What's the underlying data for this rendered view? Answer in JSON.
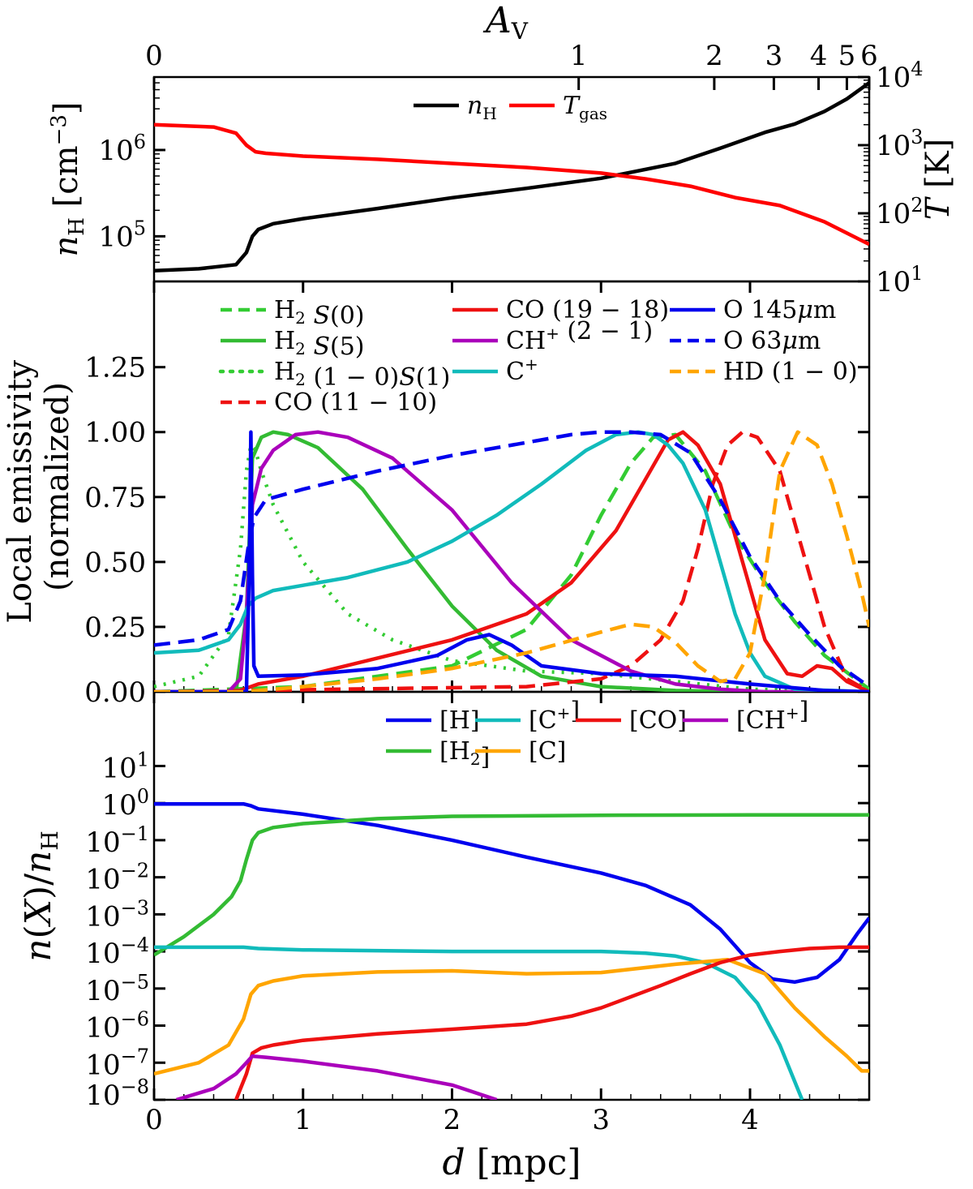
{
  "chart_data": [
    {
      "id": "top",
      "type": "line",
      "title": "",
      "top_axis": {
        "label": "A_V",
        "ticks": [
          {
            "v": 0,
            "label": "0",
            "d": 0.0
          },
          {
            "v": 1,
            "label": "1",
            "d": 2.85
          },
          {
            "v": 2,
            "label": "2",
            "d": 3.76
          },
          {
            "v": 3,
            "label": "3",
            "d": 4.16
          },
          {
            "v": 4,
            "label": "4",
            "d": 4.46
          },
          {
            "v": 5,
            "label": "5",
            "d": 4.65
          },
          {
            "v": 6,
            "label": "6",
            "d": 4.8
          }
        ]
      },
      "xlim": [
        0,
        4.8
      ],
      "ylabel_left": "n_H [cm^-3]",
      "ylim_left": [
        30000,
        7000000
      ],
      "yticks_left": [
        {
          "v": 100000,
          "label": "10^5"
        },
        {
          "v": 1000000,
          "label": "10^6"
        }
      ],
      "ylabel_right": "T [K]",
      "ylim_right": [
        10,
        10000
      ],
      "yticks_right": [
        {
          "v": 10,
          "label": "10^1"
        },
        {
          "v": 100,
          "label": "10^2"
        },
        {
          "v": 1000,
          "label": "10^3"
        },
        {
          "v": 10000,
          "label": "10^4"
        }
      ],
      "legend_position": "top-center",
      "series": [
        {
          "name": "n_H",
          "color": "#000000",
          "style": "solid",
          "axis": "left",
          "x": [
            0,
            0.3,
            0.55,
            0.62,
            0.66,
            0.7,
            0.8,
            1.0,
            1.5,
            2.0,
            2.5,
            3.0,
            3.5,
            3.8,
            4.1,
            4.3,
            4.5,
            4.65,
            4.8
          ],
          "y": [
            40000,
            42000,
            47000,
            65000,
            100000,
            120000,
            140000,
            160000,
            210000,
            280000,
            360000,
            470000,
            700000,
            1050000,
            1600000,
            2000000,
            2800000,
            3900000,
            6000000
          ]
        },
        {
          "name": "T_gas",
          "color": "#ff0000",
          "style": "solid",
          "axis": "right",
          "x": [
            0,
            0.4,
            0.55,
            0.62,
            0.68,
            0.75,
            1.0,
            1.5,
            2.0,
            2.5,
            3.0,
            3.3,
            3.6,
            3.9,
            4.2,
            4.5,
            4.8
          ],
          "y": [
            2000,
            1850,
            1500,
            1000,
            800,
            760,
            690,
            620,
            540,
            470,
            390,
            320,
            250,
            170,
            130,
            75,
            35
          ]
        }
      ]
    },
    {
      "id": "middle",
      "type": "line",
      "xlim": [
        0,
        4.8
      ],
      "ylabel": "Local emissivity (normalized)",
      "ylim": [
        0,
        1.58
      ],
      "yticks": [
        {
          "v": 0,
          "label": "0.00"
        },
        {
          "v": 0.25,
          "label": "0.25"
        },
        {
          "v": 0.5,
          "label": "0.50"
        },
        {
          "v": 0.75,
          "label": "0.75"
        },
        {
          "v": 1.0,
          "label": "1.00"
        },
        {
          "v": 1.25,
          "label": "1.25"
        }
      ],
      "legend_position": "top",
      "series": [
        {
          "name": "H2 S(0)",
          "color": "#33cc33",
          "style": "dashed",
          "x": [
            0,
            1.0,
            2.0,
            2.5,
            2.8,
            3.0,
            3.2,
            3.35,
            3.5,
            3.7,
            3.9,
            4.1,
            4.3,
            4.5,
            4.8
          ],
          "y": [
            0,
            0.02,
            0.1,
            0.24,
            0.45,
            0.68,
            0.88,
            0.98,
            0.99,
            0.85,
            0.6,
            0.42,
            0.27,
            0.14,
            0.01
          ]
        },
        {
          "name": "H2 S(5)",
          "color": "#33bb33",
          "style": "solid",
          "x": [
            0,
            0.55,
            0.62,
            0.66,
            0.72,
            0.8,
            0.9,
            1.1,
            1.4,
            1.7,
            2.0,
            2.3,
            2.6,
            3.0,
            3.5,
            4.0,
            4.8
          ],
          "y": [
            0,
            0,
            0.3,
            0.9,
            0.98,
            1.0,
            0.99,
            0.94,
            0.78,
            0.55,
            0.33,
            0.16,
            0.06,
            0.02,
            0.005,
            0,
            0
          ]
        },
        {
          "name": "H2 (1-0)S(1)",
          "color": "#33cc33",
          "style": "dotted",
          "x": [
            0,
            0.3,
            0.5,
            0.58,
            0.62,
            0.65,
            0.68,
            0.72,
            0.8,
            1.0,
            1.3,
            1.6,
            2.0,
            2.5,
            3.0,
            3.5,
            4.0,
            4.8
          ],
          "y": [
            0.02,
            0.06,
            0.22,
            0.55,
            0.85,
            0.95,
            0.93,
            0.85,
            0.72,
            0.5,
            0.3,
            0.2,
            0.12,
            0.08,
            0.07,
            0.04,
            0.01,
            0
          ]
        },
        {
          "name": "CO (11-10)",
          "color": "#ee1111",
          "style": "dashed",
          "x": [
            0,
            2.5,
            3.0,
            3.2,
            3.4,
            3.55,
            3.65,
            3.75,
            3.85,
            3.95,
            4.05,
            4.2,
            4.35,
            4.5,
            4.65,
            4.8
          ],
          "y": [
            0,
            0.02,
            0.05,
            0.1,
            0.2,
            0.35,
            0.55,
            0.8,
            0.95,
            1.0,
            0.98,
            0.85,
            0.55,
            0.25,
            0.05,
            0
          ]
        },
        {
          "name": "CO (19-18)",
          "color": "#ee1111",
          "style": "solid",
          "x": [
            0,
            0.55,
            0.65,
            0.7,
            1.0,
            1.5,
            2.0,
            2.5,
            2.8,
            3.1,
            3.3,
            3.45,
            3.55,
            3.65,
            3.8,
            3.95,
            4.1,
            4.25,
            4.35,
            4.45,
            4.55,
            4.65,
            4.8
          ],
          "y": [
            0,
            0,
            0.02,
            0.03,
            0.06,
            0.13,
            0.2,
            0.3,
            0.42,
            0.62,
            0.82,
            0.97,
            1.0,
            0.95,
            0.8,
            0.5,
            0.2,
            0.07,
            0.06,
            0.1,
            0.09,
            0.04,
            0
          ]
        },
        {
          "name": "CH+ (2-1)",
          "color": "#aa00bb",
          "style": "solid",
          "x": [
            0,
            0.5,
            0.58,
            0.62,
            0.66,
            0.72,
            0.8,
            0.95,
            1.1,
            1.3,
            1.6,
            2.0,
            2.4,
            2.8,
            3.2,
            3.5,
            3.8,
            4.1,
            4.5,
            4.8
          ],
          "y": [
            0,
            0,
            0.05,
            0.3,
            0.72,
            0.86,
            0.93,
            0.99,
            1.0,
            0.98,
            0.9,
            0.7,
            0.42,
            0.2,
            0.08,
            0.03,
            0.01,
            0,
            0,
            0
          ]
        },
        {
          "name": "C+",
          "color": "#11bbbb",
          "style": "solid",
          "x": [
            0,
            0.3,
            0.5,
            0.58,
            0.63,
            0.68,
            0.8,
            1.0,
            1.3,
            1.7,
            2.0,
            2.3,
            2.6,
            2.9,
            3.1,
            3.25,
            3.35,
            3.45,
            3.55,
            3.7,
            3.8,
            3.9,
            4.0,
            4.1,
            4.3,
            4.8
          ],
          "y": [
            0.15,
            0.16,
            0.2,
            0.26,
            0.33,
            0.36,
            0.39,
            0.41,
            0.44,
            0.5,
            0.58,
            0.68,
            0.8,
            0.93,
            0.99,
            1.0,
            0.99,
            0.95,
            0.88,
            0.7,
            0.5,
            0.3,
            0.15,
            0.06,
            0.01,
            0
          ]
        },
        {
          "name": "O 145μm",
          "color": "#0000ee",
          "style": "solid",
          "x": [
            0,
            0.62,
            0.64,
            0.65,
            0.66,
            0.67,
            0.7,
            1.0,
            1.5,
            1.9,
            2.1,
            2.25,
            2.4,
            2.6,
            3.0,
            3.5,
            4.0,
            4.5,
            4.8
          ],
          "y": [
            0,
            0,
            0.5,
            1.0,
            0.45,
            0.1,
            0.06,
            0.065,
            0.09,
            0.14,
            0.2,
            0.22,
            0.18,
            0.1,
            0.07,
            0.06,
            0.03,
            0.005,
            0
          ]
        },
        {
          "name": "O 63μm",
          "color": "#0000ee",
          "style": "dashed",
          "x": [
            0,
            0.3,
            0.5,
            0.58,
            0.63,
            0.67,
            0.75,
            1.0,
            1.5,
            2.0,
            2.5,
            2.8,
            3.0,
            3.2,
            3.4,
            3.6,
            3.8,
            4.0,
            4.2,
            4.4,
            4.6,
            4.8
          ],
          "y": [
            0.18,
            0.2,
            0.24,
            0.35,
            0.55,
            0.67,
            0.74,
            0.78,
            0.85,
            0.91,
            0.96,
            0.99,
            1.0,
            1.0,
            0.99,
            0.92,
            0.74,
            0.52,
            0.35,
            0.22,
            0.1,
            0.02
          ]
        },
        {
          "name": "HD (1-0)",
          "color": "#ffa500",
          "style": "dashed",
          "x": [
            0,
            0.6,
            1.0,
            1.5,
            2.0,
            2.5,
            3.0,
            3.2,
            3.35,
            3.5,
            3.65,
            3.8,
            3.9,
            4.0,
            4.1,
            4.2,
            4.32,
            4.45,
            4.55,
            4.65,
            4.75,
            4.8
          ],
          "y": [
            0,
            0,
            0.02,
            0.05,
            0.09,
            0.15,
            0.23,
            0.26,
            0.25,
            0.19,
            0.1,
            0.04,
            0.05,
            0.15,
            0.45,
            0.85,
            1.0,
            0.95,
            0.8,
            0.6,
            0.38,
            0.25
          ]
        }
      ]
    },
    {
      "id": "bottom",
      "type": "line",
      "xlabel": "d [mpc]",
      "xlim": [
        0,
        4.8
      ],
      "xticks": [
        {
          "v": 0,
          "label": "0"
        },
        {
          "v": 1,
          "label": "1"
        },
        {
          "v": 2,
          "label": "2"
        },
        {
          "v": 3,
          "label": "3"
        },
        {
          "v": 4,
          "label": "4"
        }
      ],
      "ylabel": "n(X)/n_H",
      "ylim": [
        1e-08,
        1000
      ],
      "yticks": [
        {
          "v": 1e-08,
          "label": "10^-8"
        },
        {
          "v": 1e-07,
          "label": "10^-7"
        },
        {
          "v": 1e-06,
          "label": "10^-6"
        },
        {
          "v": 1e-05,
          "label": "10^-5"
        },
        {
          "v": 0.0001,
          "label": "10^-4"
        },
        {
          "v": 0.001,
          "label": "10^-3"
        },
        {
          "v": 0.01,
          "label": "10^-2"
        },
        {
          "v": 0.1,
          "label": "10^-1"
        },
        {
          "v": 1,
          "label": "10^0"
        },
        {
          "v": 10,
          "label": "10^1"
        }
      ],
      "legend_position": "top-right",
      "series": [
        {
          "name": "[H]",
          "color": "#0000ee",
          "style": "solid",
          "x": [
            0,
            0.6,
            0.65,
            0.7,
            1.0,
            1.5,
            2.0,
            2.5,
            3.0,
            3.3,
            3.6,
            3.8,
            4.0,
            4.15,
            4.3,
            4.45,
            4.6,
            4.72,
            4.8
          ],
          "y": [
            0.95,
            0.95,
            0.85,
            0.7,
            0.5,
            0.25,
            0.1,
            0.035,
            0.013,
            0.006,
            0.0018,
            0.0004,
            5e-05,
            1.8e-05,
            1.5e-05,
            2e-05,
            6e-05,
            0.0003,
            0.0008
          ]
        },
        {
          "name": "[H2]",
          "color": "#33bb33",
          "style": "solid",
          "x": [
            0,
            0.2,
            0.4,
            0.52,
            0.58,
            0.62,
            0.66,
            0.7,
            0.8,
            1.0,
            1.5,
            2.0,
            3.0,
            4.0,
            4.8
          ],
          "y": [
            8e-05,
            0.00025,
            0.001,
            0.003,
            0.008,
            0.03,
            0.1,
            0.16,
            0.22,
            0.28,
            0.38,
            0.44,
            0.47,
            0.48,
            0.48
          ]
        },
        {
          "name": "[C+]",
          "color": "#11bbbb",
          "style": "solid",
          "x": [
            0,
            0.6,
            0.7,
            1.0,
            2.0,
            2.5,
            3.0,
            3.3,
            3.5,
            3.7,
            3.9,
            4.05,
            4.2,
            4.35
          ],
          "y": [
            0.00013,
            0.00013,
            0.00012,
            0.00011,
            0.0001,
            0.0001,
            0.0001,
            9e-05,
            7.5e-05,
            5e-05,
            2e-05,
            4e-06,
            3e-07,
            1e-08
          ]
        },
        {
          "name": "[C]",
          "color": "#ffa500",
          "style": "solid",
          "x": [
            0,
            0.3,
            0.5,
            0.6,
            0.65,
            0.7,
            0.8,
            1.0,
            1.5,
            2.0,
            2.5,
            3.0,
            3.5,
            3.85,
            4.1,
            4.3,
            4.5,
            4.65,
            4.75,
            4.8
          ],
          "y": [
            5e-08,
            1e-07,
            3e-07,
            1.5e-06,
            7e-06,
            1.2e-05,
            1.6e-05,
            2.2e-05,
            2.8e-05,
            3e-05,
            2.5e-05,
            2.7e-05,
            4.5e-05,
            6e-05,
            2.5e-05,
            3e-06,
            5e-07,
            1.5e-07,
            6e-08,
            6e-08
          ]
        },
        {
          "name": "[CO]",
          "color": "#ee1111",
          "style": "solid",
          "x": [
            0.55,
            0.62,
            0.66,
            0.72,
            0.8,
            1.0,
            1.5,
            2.0,
            2.5,
            2.8,
            3.0,
            3.2,
            3.4,
            3.6,
            3.8,
            4.0,
            4.2,
            4.4,
            4.6,
            4.8
          ],
          "y": [
            1e-08,
            5e-08,
            1.8e-07,
            2.5e-07,
            3e-07,
            4e-07,
            6e-07,
            8e-07,
            1.1e-06,
            1.8e-06,
            3e-06,
            6e-06,
            1.2e-05,
            2.5e-05,
            5e-05,
            8e-05,
            0.0001,
            0.00012,
            0.00013,
            0.00013
          ]
        },
        {
          "name": "[CH+]",
          "color": "#aa00bb",
          "style": "solid",
          "x": [
            0.15,
            0.4,
            0.55,
            0.62,
            0.66,
            0.75,
            1.0,
            1.5,
            2.0,
            2.3
          ],
          "y": [
            1e-08,
            2e-08,
            5e-08,
            1e-07,
            1.5e-07,
            1.4e-07,
            1.1e-07,
            6e-08,
            2.5e-08,
            1e-08
          ]
        }
      ]
    }
  ]
}
